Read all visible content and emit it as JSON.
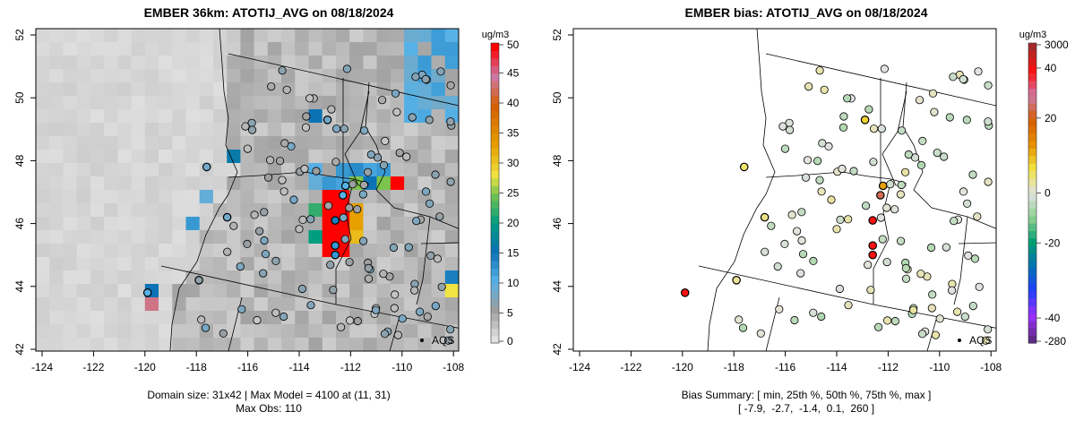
{
  "chart_data": [
    {
      "type": "heatmap",
      "title": "EMBER 36km: ATOTIJ_AVG on 08/18/2024",
      "x_ticks": [
        "-124",
        "-122",
        "-120",
        "-118",
        "-116",
        "-114",
        "-112",
        "-110",
        "-108"
      ],
      "y_ticks": [
        "42",
        "44",
        "46",
        "48",
        "50",
        "52"
      ],
      "xlim": [
        -124.3,
        -107.8
      ],
      "ylim": [
        41.8,
        52.2
      ],
      "colorbar": {
        "unit": "ug/m3",
        "labels": [
          "0",
          "5",
          "10",
          "15",
          "20",
          "25",
          "30",
          "35",
          "40",
          "45",
          "50"
        ],
        "range": [
          0,
          50
        ]
      },
      "legend": "AQS",
      "footer": [
        "Domain size: 31x42 | Max Model = 4100 at (11, 31)",
        "Max Obs: 110"
      ],
      "hot_cells": [
        {
          "i": 21,
          "j": 12,
          "v": 50
        },
        {
          "i": 22,
          "j": 12,
          "v": 50
        },
        {
          "i": 21,
          "j": 13,
          "v": 50
        },
        {
          "i": 22,
          "j": 13,
          "v": 50
        },
        {
          "i": 21,
          "j": 14,
          "v": 50
        },
        {
          "i": 22,
          "j": 14,
          "v": 50
        },
        {
          "i": 21,
          "j": 15,
          "v": 50
        },
        {
          "i": 22,
          "j": 15,
          "v": 50
        },
        {
          "i": 21,
          "j": 16,
          "v": 50
        },
        {
          "i": 22,
          "j": 16,
          "v": 50
        },
        {
          "i": 23,
          "j": 13,
          "v": 33
        },
        {
          "i": 23,
          "j": 14,
          "v": 33
        },
        {
          "i": 23,
          "j": 15,
          "v": 31
        },
        {
          "i": 20,
          "j": 13,
          "v": 22
        },
        {
          "i": 20,
          "j": 15,
          "v": 20
        },
        {
          "i": 21,
          "j": 11,
          "v": 12
        },
        {
          "i": 22,
          "j": 10,
          "v": 12
        },
        {
          "i": 23,
          "j": 10,
          "v": 13
        },
        {
          "i": 24,
          "j": 11,
          "v": 15
        },
        {
          "i": 25,
          "j": 11,
          "v": 25
        },
        {
          "i": 26,
          "j": 11,
          "v": 50
        },
        {
          "i": 23,
          "j": 11,
          "v": 25
        },
        {
          "i": 22,
          "j": 11,
          "v": 11
        },
        {
          "i": 24,
          "j": 10,
          "v": 11
        },
        {
          "i": 25,
          "j": 10,
          "v": 12
        },
        {
          "i": 20,
          "j": 11,
          "v": 9
        },
        {
          "i": 20,
          "j": 10,
          "v": 10
        },
        {
          "i": 14,
          "j": 9,
          "v": 16
        },
        {
          "i": 20,
          "j": 6,
          "v": 15
        },
        {
          "i": 8,
          "j": 19,
          "v": 15
        },
        {
          "i": 8,
          "j": 20,
          "v": 44
        },
        {
          "i": 30,
          "j": 18,
          "v": 14
        },
        {
          "i": 30,
          "j": 19,
          "v": 28
        },
        {
          "i": 11,
          "j": 14,
          "v": 12
        },
        {
          "i": 12,
          "j": 12,
          "v": 9
        }
      ],
      "notable_stations": [
        {
          "lon": -112.6,
          "lat": 46.1,
          "obs": 14,
          "bias": 40
        },
        {
          "lon": -112.6,
          "lat": 45.3,
          "obs": 12,
          "bias": 45
        },
        {
          "lon": -112.6,
          "lat": 45.0,
          "obs": 12,
          "bias": 45
        },
        {
          "lon": -112.3,
          "lat": 46.9,
          "obs": 10,
          "bias": 25
        },
        {
          "lon": -112.2,
          "lat": 47.2,
          "obs": 10,
          "bias": 12
        },
        {
          "lon": -112.9,
          "lat": 49.3,
          "obs": 8,
          "bias": 8
        },
        {
          "lon": -117.6,
          "lat": 47.8,
          "obs": 8,
          "bias": 5
        },
        {
          "lon": -116.8,
          "lat": 46.2,
          "obs": 8,
          "bias": 4
        },
        {
          "lon": -119.9,
          "lat": 43.8,
          "obs": 10,
          "bias": 45
        },
        {
          "lon": -117.9,
          "lat": 44.2,
          "obs": 6,
          "bias": 3
        }
      ]
    },
    {
      "type": "scatter",
      "title": "EMBER bias: ATOTIJ_AVG on 08/18/2024",
      "x_ticks": [
        "-124",
        "-122",
        "-120",
        "-118",
        "-116",
        "-114",
        "-112",
        "-110",
        "-108"
      ],
      "y_ticks": [
        "42",
        "44",
        "46",
        "48",
        "50",
        "52"
      ],
      "colorbar": {
        "unit": "ug/m3",
        "labels": [
          "-280",
          "-40",
          "-20",
          "0",
          "20",
          "40",
          "3000"
        ]
      },
      "legend": "AQS",
      "footer": [
        "Bias Summary: [ min, 25th %, 50th %, 75th %, max ]",
        "[ -7.9,  -2.7,  -1.4,  0.1,  260 ]"
      ],
      "bias_summary": {
        "min": -7.9,
        "p25": -2.7,
        "p50": -1.4,
        "p75": 0.1,
        "max": 260
      }
    }
  ]
}
